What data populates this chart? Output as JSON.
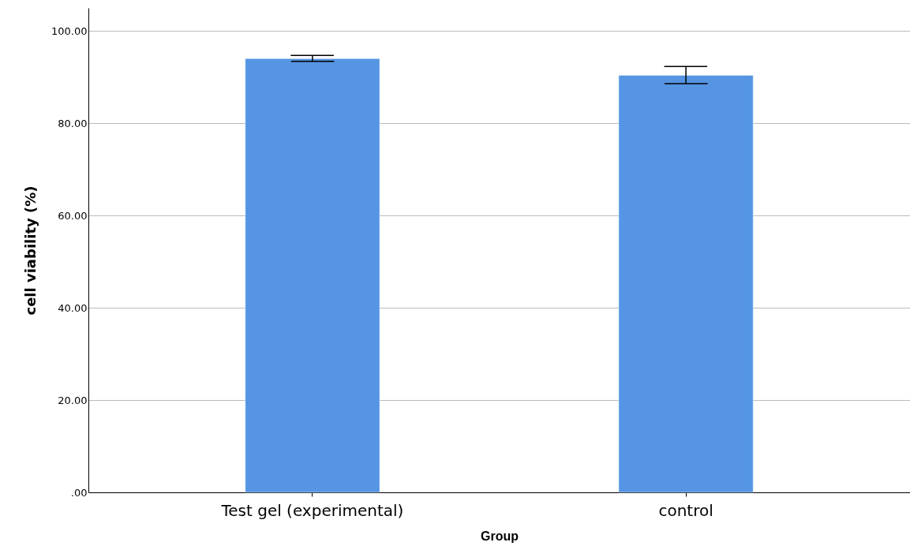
{
  "chart_data": {
    "type": "bar",
    "xlabel": "Group",
    "ylabel": "cell viability (%)",
    "categories": [
      "Test gel (experimental)",
      "control"
    ],
    "values": [
      94.0,
      90.4
    ],
    "errors": [
      [
        93.4,
        94.7
      ],
      [
        88.6,
        92.3
      ]
    ],
    "color": "#5595e3",
    "ylim": [
      0,
      105
    ],
    "yticks": [
      {
        "value": 0,
        "label": ".00"
      },
      {
        "value": 20,
        "label": "20.00"
      },
      {
        "value": 40,
        "label": "40.00"
      },
      {
        "value": 60,
        "label": "60.00"
      },
      {
        "value": 80,
        "label": "80.00"
      },
      {
        "value": 100,
        "label": "100.00"
      }
    ],
    "grid": "y"
  }
}
